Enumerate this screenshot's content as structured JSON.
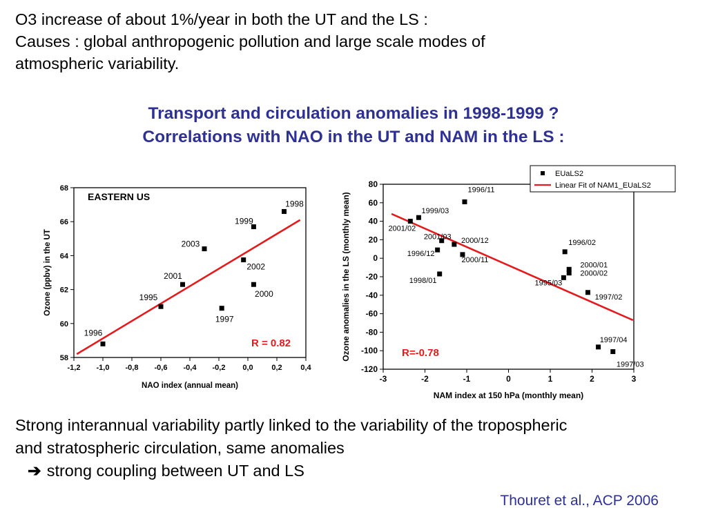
{
  "intro": {
    "line1": "O3 increase of about 1%/year in both the UT and the LS :",
    "line2": "Causes :  global anthropogenic pollution and large scale modes of",
    "line3": "atmospheric variability."
  },
  "headline": {
    "line1": "Transport and circulation anomalies in 1998-1999 ?",
    "line2": "Correlations with NAO in the UT and NAM in the LS :"
  },
  "conclusion": {
    "line1": "Strong interannual variability partly linked to the variability of the tropospheric",
    "line2": "and stratospheric circulation, same anomalies",
    "arrow_text": "strong coupling between UT and LS"
  },
  "citation": "Thouret et al., ACP 2006",
  "colors": {
    "accent_blue": "#2e3192",
    "fit_red": "#e41a1c",
    "marker": "#000000"
  },
  "chart_data": [
    {
      "type": "scatter",
      "title": "EASTERN US",
      "xlabel": "NAO index (annual mean)",
      "ylabel": "Ozone (ppbv) in the UT",
      "xlim": [
        -1.2,
        0.4
      ],
      "ylim": [
        58,
        68
      ],
      "xticks": [
        -1.2,
        -1.0,
        -0.8,
        -0.6,
        -0.4,
        -0.2,
        0.0,
        0.2,
        0.4
      ],
      "xtick_labels": [
        "-1,2",
        "-1,0",
        "-0,8",
        "-0,6",
        "-0,4",
        "-0,2",
        "0,0",
        "0,2",
        "0,4"
      ],
      "yticks": [
        58,
        60,
        62,
        64,
        66,
        68
      ],
      "ytick_labels": [
        "58",
        "60",
        "62",
        "64",
        "66",
        "68"
      ],
      "points": [
        {
          "label": "1996",
          "x": -1.0,
          "y": 58.8
        },
        {
          "label": "1995",
          "x": -0.6,
          "y": 61.0
        },
        {
          "label": "2001",
          "x": -0.45,
          "y": 62.3
        },
        {
          "label": "2003",
          "x": -0.3,
          "y": 64.4
        },
        {
          "label": "1997",
          "x": -0.18,
          "y": 60.9
        },
        {
          "label": "2002",
          "x": -0.03,
          "y": 63.75
        },
        {
          "label": "2000",
          "x": 0.04,
          "y": 62.3
        },
        {
          "label": "1999",
          "x": 0.04,
          "y": 65.7
        },
        {
          "label": "1998",
          "x": 0.25,
          "y": 66.6
        }
      ],
      "fit_line": {
        "x1": -1.18,
        "y1": 58.2,
        "x2": 0.36,
        "y2": 66.1
      },
      "annotation": "R = 0.82"
    },
    {
      "type": "scatter",
      "title": "",
      "xlabel": "NAM index at 150 hPa (monthly mean)",
      "ylabel": "Ozone anomalies in the LS (monthly mean)",
      "xlim": [
        -3,
        3
      ],
      "ylim": [
        -120,
        80
      ],
      "xticks": [
        -3,
        -2,
        -1,
        0,
        1,
        2,
        3
      ],
      "xtick_labels": [
        "-3",
        "-2",
        "-1",
        "0",
        "1",
        "2",
        "3"
      ],
      "yticks": [
        -120,
        -100,
        -80,
        -60,
        -40,
        -20,
        0,
        20,
        40,
        60,
        80
      ],
      "ytick_labels": [
        "-120",
        "-100",
        "-80",
        "-60",
        "-40",
        "-20",
        "0",
        "20",
        "40",
        "60",
        "80"
      ],
      "legend": {
        "points_label": "EUaLS2",
        "line_label": "Linear Fit of NAM1_EUaLS2",
        "position": "top-right"
      },
      "points": [
        {
          "label": "1996/11",
          "x": -1.05,
          "y": 61
        },
        {
          "label": "1999/03",
          "x": -2.15,
          "y": 44
        },
        {
          "label": "2001/02",
          "x": -2.35,
          "y": 40
        },
        {
          "label": "2001/03",
          "x": -1.6,
          "y": 19
        },
        {
          "label": "2000/12",
          "x": -1.3,
          "y": 15
        },
        {
          "label": "1996/12",
          "x": -1.7,
          "y": 9
        },
        {
          "label": "2000/11",
          "x": -1.1,
          "y": 4
        },
        {
          "label": "1998/01",
          "x": -1.65,
          "y": -17
        },
        {
          "label": "1996/02",
          "x": 1.35,
          "y": 7
        },
        {
          "label": "2000/01",
          "x": 1.45,
          "y": -12
        },
        {
          "label": "2000/02",
          "x": 1.45,
          "y": -16
        },
        {
          "label": "1995/03",
          "x": 1.32,
          "y": -21
        },
        {
          "label": "1997/02",
          "x": 1.9,
          "y": -37
        },
        {
          "label": "1997/04",
          "x": 2.15,
          "y": -96
        },
        {
          "label": "1997/03",
          "x": 2.5,
          "y": -101
        }
      ],
      "fit_line": {
        "x1": -2.8,
        "y1": 48,
        "x2": 2.98,
        "y2": -67
      },
      "annotation": "R=-0.78"
    }
  ]
}
